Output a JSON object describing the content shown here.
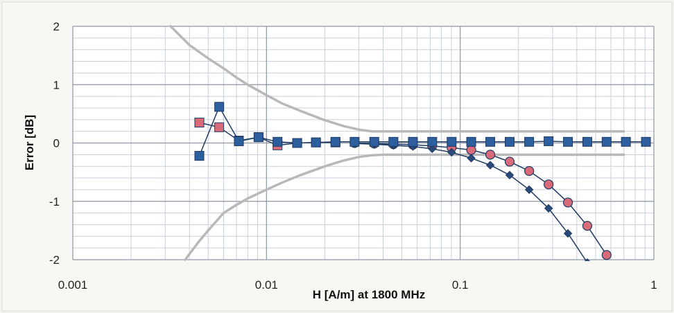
{
  "chart_data": {
    "type": "line",
    "title": "",
    "xlabel": "H [A/m] at 1800 MHz",
    "ylabel": "Error [dB]",
    "x_scale": "log",
    "xlim": [
      0.001,
      1
    ],
    "ylim": [
      -2,
      2
    ],
    "x_ticks": [
      "0.001",
      "0.01",
      "0.1",
      "1"
    ],
    "y_ticks": [
      "2",
      "1",
      "0",
      "-1",
      "-2"
    ],
    "grid": true,
    "legend": "none",
    "series": [
      {
        "name": "",
        "color": "#b8b8b8",
        "marker": "none",
        "x": [
          0.0032,
          0.004,
          0.005,
          0.006,
          0.007,
          0.008,
          0.01,
          0.012,
          0.015,
          0.02,
          0.025,
          0.03,
          0.035,
          0.04,
          0.05,
          0.1,
          0.2,
          0.5,
          0.7
        ],
        "y": [
          2.0,
          1.68,
          1.45,
          1.28,
          1.12,
          1.0,
          0.82,
          0.68,
          0.55,
          0.39,
          0.29,
          0.23,
          0.2,
          0.2,
          0.2,
          0.2,
          0.2,
          0.2,
          0.2
        ]
      },
      {
        "name": "",
        "color": "#b8b8b8",
        "marker": "none",
        "x": [
          0.0038,
          0.0045,
          0.005,
          0.006,
          0.007,
          0.008,
          0.01,
          0.012,
          0.015,
          0.02,
          0.025,
          0.03,
          0.035,
          0.04,
          0.05,
          0.1,
          0.2,
          0.5,
          0.7
        ],
        "y": [
          -2.0,
          -1.68,
          -1.5,
          -1.2,
          -1.06,
          -0.95,
          -0.8,
          -0.68,
          -0.55,
          -0.4,
          -0.3,
          -0.24,
          -0.21,
          -0.2,
          -0.2,
          -0.2,
          -0.2,
          -0.2,
          -0.2
        ]
      },
      {
        "name": "",
        "color": "#d96a7a",
        "marker": "square",
        "x": [
          0.0045,
          0.0057,
          0.0072,
          0.0091,
          0.0114,
          0.0144,
          0.018,
          0.0227
        ],
        "y": [
          0.35,
          0.27,
          0.04,
          0.1,
          -0.04,
          0.0,
          0.01,
          0.01
        ]
      },
      {
        "name": "",
        "color": "#d96a7a",
        "marker": "circle",
        "x": [
          0.0285,
          0.036,
          0.0452,
          0.057,
          0.0717,
          0.0903,
          0.114,
          0.143,
          0.18,
          0.227,
          0.286,
          0.36,
          0.453,
          0.57
        ],
        "y": [
          0.0,
          -0.01,
          -0.02,
          -0.03,
          -0.05,
          -0.08,
          -0.12,
          -0.2,
          -0.32,
          -0.48,
          -0.71,
          -1.02,
          -1.42,
          -1.92
        ]
      },
      {
        "name": "",
        "color": "#2a4a7a",
        "marker": "diamond",
        "x": [
          0.0285,
          0.036,
          0.0452,
          0.057,
          0.0717,
          0.0903,
          0.114,
          0.143,
          0.18,
          0.227,
          0.286,
          0.36,
          0.453
        ],
        "y": [
          -0.01,
          -0.02,
          -0.04,
          -0.06,
          -0.1,
          -0.16,
          -0.26,
          -0.38,
          -0.55,
          -0.8,
          -1.12,
          -1.55,
          -2.05
        ]
      },
      {
        "name": "",
        "color": "#2d5f9e",
        "marker": "square",
        "x": [
          0.0045,
          0.0057,
          0.0072,
          0.0091,
          0.0114,
          0.0144,
          0.018,
          0.0227,
          0.0285,
          0.036,
          0.0452,
          0.057,
          0.0717,
          0.0903,
          0.114,
          0.143,
          0.18,
          0.227,
          0.286,
          0.36,
          0.453,
          0.57,
          0.717,
          0.91
        ],
        "y": [
          -0.22,
          0.62,
          0.03,
          0.1,
          0.02,
          0.0,
          0.01,
          0.02,
          0.02,
          0.02,
          0.02,
          0.02,
          0.02,
          0.02,
          0.02,
          0.02,
          0.02,
          0.02,
          0.03,
          0.02,
          0.02,
          0.02,
          0.02,
          0.02
        ]
      }
    ]
  }
}
